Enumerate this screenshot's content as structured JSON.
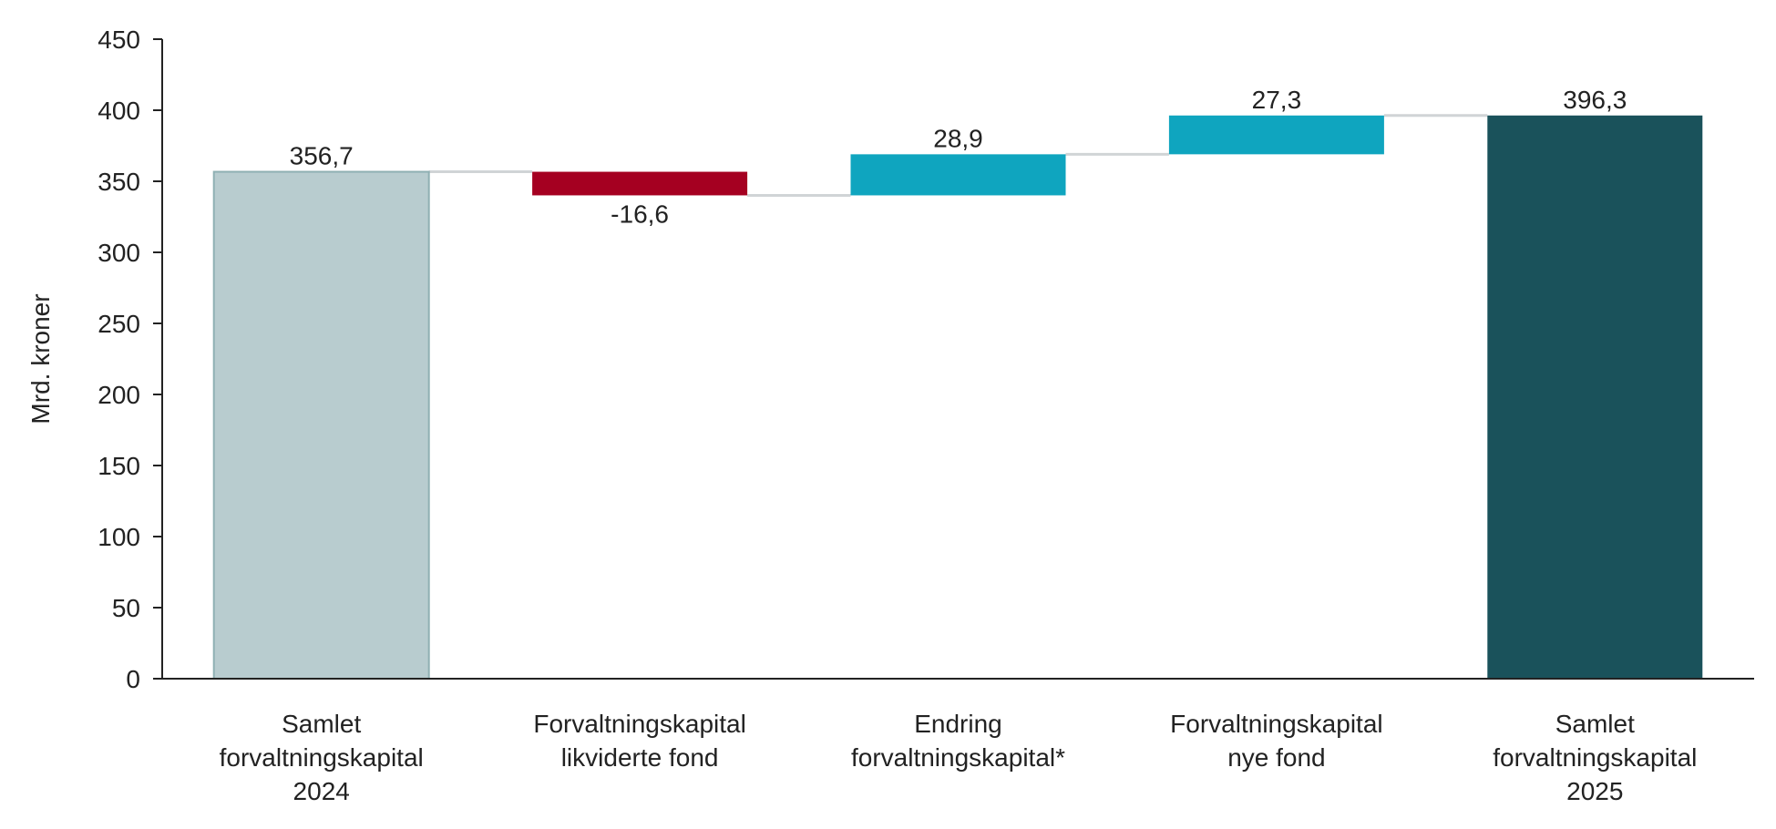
{
  "chart_data": {
    "type": "bar",
    "subtype": "waterfall",
    "title": "",
    "ylabel": "Mrd. kroner",
    "xlabel": "",
    "ylim": [
      0,
      450
    ],
    "yticks": [
      0,
      50,
      100,
      150,
      200,
      250,
      300,
      350,
      400,
      450
    ],
    "grid": false,
    "categories": [
      [
        "Samlet",
        "forvaltningskapital",
        "2024"
      ],
      [
        "Forvaltningskapital",
        "likviderte fond"
      ],
      [
        "Endring",
        "forvaltningskapital*"
      ],
      [
        "Forvaltningskapital",
        "nye fond"
      ],
      [
        "Samlet",
        "forvaltningskapital",
        "2025"
      ]
    ],
    "bars": [
      {
        "kind": "total",
        "base": 0,
        "top": 356.7,
        "value": 356.7,
        "label": "356,7",
        "color": "#b8cccf",
        "stroke": "#8fb0b3"
      },
      {
        "kind": "decrease",
        "base": 340.1,
        "top": 356.7,
        "value": -16.6,
        "label": "-16,6",
        "color": "#a50021"
      },
      {
        "kind": "increase",
        "base": 340.1,
        "top": 369.0,
        "value": 28.9,
        "label": "28,9",
        "color": "#0fa5bf"
      },
      {
        "kind": "increase",
        "base": 369.0,
        "top": 396.3,
        "value": 27.3,
        "label": "27,3",
        "color": "#0fa5bf"
      },
      {
        "kind": "total",
        "base": 0,
        "top": 396.3,
        "value": 396.3,
        "label": "396,3",
        "color": "#1a525b"
      }
    ],
    "connector_color": "#d0d4d6"
  }
}
